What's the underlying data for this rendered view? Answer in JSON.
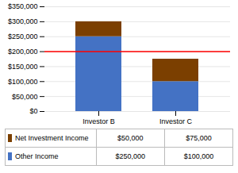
{
  "chart_data": {
    "type": "bar",
    "stacked": true,
    "categories": [
      "Investor B",
      "Investor C"
    ],
    "series": [
      {
        "name": "Other Income",
        "color": "#4472C4",
        "values": [
          250000,
          100000
        ],
        "value_labels": [
          "$250,000",
          "$100,000"
        ]
      },
      {
        "name": "Net Investment Income",
        "color": "#7B3F00",
        "values": [
          50000,
          75000
        ],
        "value_labels": [
          "$50,000",
          "$75,000"
        ]
      }
    ],
    "hline": {
      "value": 200000,
      "color": "#FF0000"
    },
    "ylim": [
      0,
      350000
    ],
    "yticks": [
      {
        "value": 0,
        "label": "$0"
      },
      {
        "value": 50000,
        "label": "$50,000"
      },
      {
        "value": 100000,
        "label": "$100,000"
      },
      {
        "value": 150000,
        "label": "$150,000"
      },
      {
        "value": 200000,
        "label": "$200,000"
      },
      {
        "value": 250000,
        "label": "$250,000"
      },
      {
        "value": 300000,
        "label": "$300,000"
      },
      {
        "value": 350000,
        "label": "$350,000"
      }
    ],
    "grid": true
  }
}
